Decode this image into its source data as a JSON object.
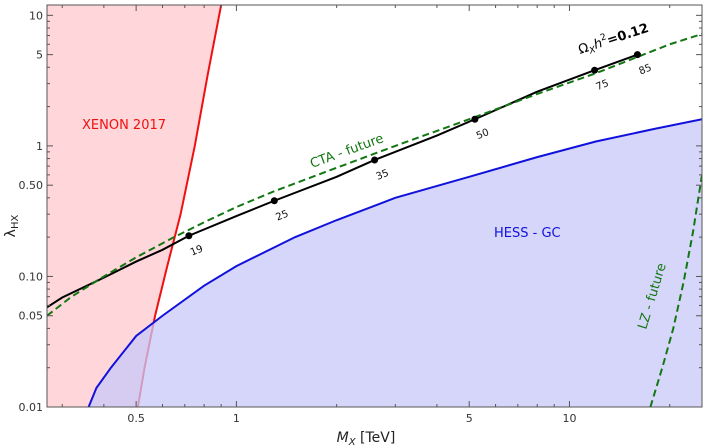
{
  "chart_data": {
    "type": "line",
    "xlabel": "M",
    "xlabel_sub": "X",
    "xlabel_unit": " [TeV]",
    "ylabel": "λ",
    "ylabel_sub": "HX",
    "x_scale": "log",
    "y_scale": "log",
    "xlim": [
      0.27,
      25
    ],
    "ylim": [
      0.01,
      12
    ],
    "x_ticks": [
      {
        "value": 0.5,
        "label": "0.5"
      },
      {
        "value": 1,
        "label": "1"
      },
      {
        "value": 5,
        "label": "5"
      },
      {
        "value": 10,
        "label": "10"
      }
    ],
    "y_ticks": [
      {
        "value": 0.01,
        "label": "0.01"
      },
      {
        "value": 0.05,
        "label": "0.05"
      },
      {
        "value": 0.1,
        "label": "0.10"
      },
      {
        "value": 0.5,
        "label": "0.50"
      },
      {
        "value": 1,
        "label": "1"
      },
      {
        "value": 5,
        "label": "5"
      },
      {
        "value": 10,
        "label": "10"
      }
    ],
    "grid": false,
    "regions": [
      {
        "name": "XENON 2017",
        "fill": "#ffc8cc",
        "edge": "#ee1111",
        "x": [
          0.506,
          0.53,
          0.57,
          0.62,
          0.68,
          0.75,
          0.82,
          0.9
        ],
        "y": [
          0.01,
          0.02,
          0.05,
          0.12,
          0.3,
          1.0,
          3.5,
          12
        ]
      },
      {
        "name": "HESS - GC",
        "fill": "#c8c8fa",
        "edge": "#1111dd",
        "x": [
          0.36,
          0.38,
          0.42,
          0.5,
          0.6,
          0.8,
          1.0,
          1.5,
          2.0,
          3.0,
          5.0,
          8.0,
          12.0,
          18.0,
          25.0
        ],
        "y": [
          0.01,
          0.014,
          0.02,
          0.035,
          0.05,
          0.085,
          0.12,
          0.2,
          0.27,
          0.4,
          0.58,
          0.82,
          1.08,
          1.35,
          1.6
        ]
      }
    ],
    "series": [
      {
        "name": "Ω",
        "color": "#000000",
        "style": "solid",
        "x": [
          0.27,
          0.3,
          0.4,
          0.5,
          0.6,
          0.72,
          1.0,
          1.3,
          2.0,
          2.6,
          4.0,
          5.2,
          8.0,
          11.9,
          16.0
        ],
        "y": [
          0.058,
          0.069,
          0.098,
          0.13,
          0.16,
          0.205,
          0.29,
          0.38,
          0.58,
          0.78,
          1.2,
          1.6,
          2.6,
          3.8,
          5.0
        ]
      },
      {
        "name": "CTA - future",
        "color": "#117711",
        "style": "dashed",
        "x": [
          0.27,
          0.32,
          0.4,
          0.5,
          0.65,
          0.8,
          1.0,
          1.3,
          2.0,
          3.0,
          5.0,
          8.0,
          12.0,
          16.0,
          20.0,
          25.0
        ],
        "y": [
          0.05,
          0.07,
          0.1,
          0.14,
          0.2,
          0.26,
          0.34,
          0.45,
          0.68,
          1.0,
          1.6,
          2.5,
          3.6,
          4.8,
          6.0,
          7.2
        ]
      },
      {
        "name": "LZ - future",
        "color": "#117711",
        "style": "dashed",
        "x": [
          17.5,
          19.0,
          20.5,
          22.0,
          23.5,
          25.0
        ],
        "y": [
          0.01,
          0.02,
          0.04,
          0.09,
          0.22,
          0.6
        ]
      }
    ],
    "points": [
      {
        "x": 0.72,
        "y": 0.205,
        "label": "19"
      },
      {
        "x": 1.3,
        "y": 0.38,
        "label": "25"
      },
      {
        "x": 2.6,
        "y": 0.78,
        "label": "35"
      },
      {
        "x": 5.2,
        "y": 1.6,
        "label": "50"
      },
      {
        "x": 11.9,
        "y": 3.8,
        "label": "75"
      },
      {
        "x": 16.0,
        "y": 5.0,
        "label": "85"
      }
    ],
    "annotations": {
      "xenon": "XENON 2017",
      "hess": "HESS - GC",
      "cta": "CTA - future",
      "lz": "LZ - future",
      "relic_lhs": "Ω",
      "relic_sub": "X",
      "relic_h": "h",
      "relic_sup": "2",
      "relic_value": "=0.12"
    }
  }
}
